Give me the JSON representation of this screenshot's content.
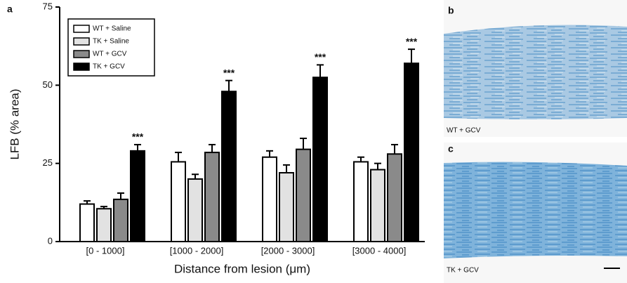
{
  "chart_data": {
    "type": "bar",
    "panel_label": "a",
    "ylabel": "LFB (% area)",
    "xlabel": "Distance from lesion (μm)",
    "categories": [
      "[0 - 1000]",
      "[1000 - 2000]",
      "[2000 - 3000]",
      "[3000 - 4000]"
    ],
    "series": [
      {
        "name": "WT + Saline",
        "color": "#ffffff",
        "values": [
          12,
          25.5,
          27,
          25.5
        ],
        "errors": [
          1,
          3,
          2,
          1.5
        ]
      },
      {
        "name": "TK + Saline",
        "color": "#e2e2e2",
        "values": [
          10.5,
          20,
          22,
          23
        ],
        "errors": [
          0.7,
          1.5,
          2.5,
          2
        ]
      },
      {
        "name": "WT + GCV",
        "color": "#8a8a8a",
        "values": [
          13.5,
          28.5,
          29.5,
          28
        ],
        "errors": [
          2,
          2.5,
          3.5,
          3
        ]
      },
      {
        "name": "TK + GCV",
        "color": "#000000",
        "values": [
          29,
          48,
          52.5,
          57
        ],
        "errors": [
          2,
          3.5,
          4,
          4.5
        ],
        "significance": [
          "***",
          "***",
          "***",
          "***"
        ]
      }
    ],
    "ylim": [
      0,
      75
    ],
    "yticks": [
      0,
      25,
      50,
      75
    ],
    "grid": false,
    "legend": "upper left"
  },
  "micrographs": [
    {
      "label": "b",
      "caption": "WT + GCV"
    },
    {
      "label": "c",
      "caption": "TK + GCV"
    }
  ]
}
